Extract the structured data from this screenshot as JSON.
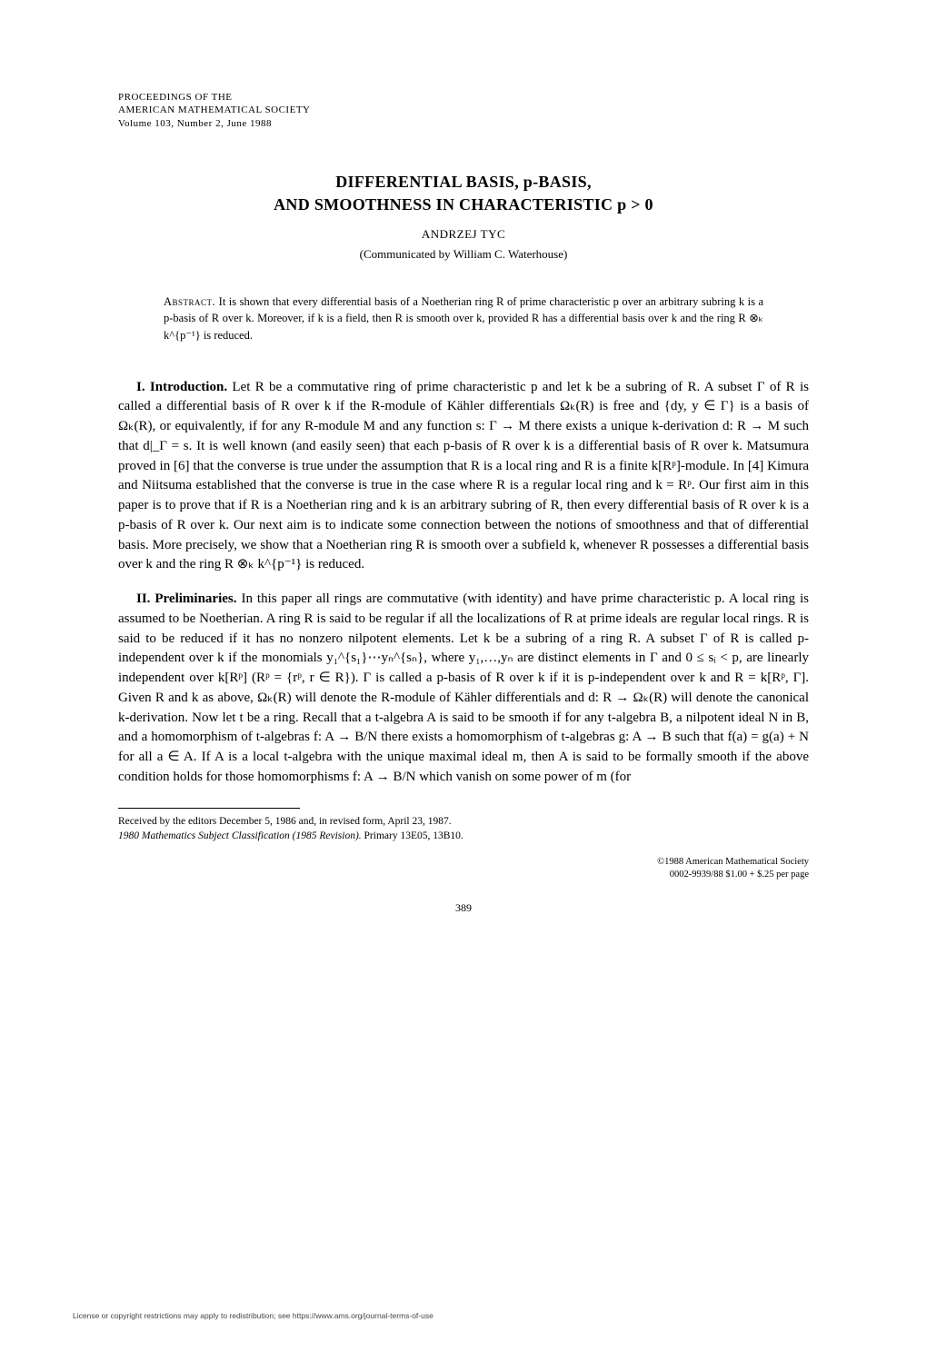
{
  "header": {
    "l1": "PROCEEDINGS OF THE",
    "l2": "AMERICAN MATHEMATICAL SOCIETY",
    "l3": "Volume 103, Number 2, June 1988"
  },
  "title": {
    "l1": "DIFFERENTIAL BASIS, p-BASIS,",
    "l2": "AND SMOOTHNESS IN CHARACTERISTIC p > 0"
  },
  "author": "ANDRZEJ TYC",
  "communicated": "(Communicated by William C. Waterhouse)",
  "abstract": {
    "label": "Abstract.",
    "text": " It is shown that every differential basis of a Noetherian ring R of prime characteristic p over an arbitrary subring k is a p-basis of R over k. Moreover, if k is a field, then R is smooth over k, provided R has a differential basis over k and the ring R ⊗ₖ k^{p⁻¹} is reduced."
  },
  "section1": {
    "title": "I. Introduction.",
    "text": " Let R be a commutative ring of prime characteristic p and let k be a subring of R. A subset Γ of R is called a differential basis of R over k if the R-module of Kähler differentials Ωₖ(R) is free and {dy, y ∈ Γ} is a basis of Ωₖ(R), or equivalently, if for any R-module M and any function s: Γ → M there exists a unique k-derivation d: R → M such that d|_Γ = s. It is well known (and easily seen) that each p-basis of R over k is a differential basis of R over k. Matsumura proved in [6] that the converse is true under the assumption that R is a local ring and R is a finite k[Rᵖ]-module. In [4] Kimura and Niitsuma established that the converse is true in the case where R is a regular local ring and k = Rᵖ. Our first aim in this paper is to prove that if R is a Noetherian ring and k is an arbitrary subring of R, then every differential basis of R over k is a p-basis of R over k. Our next aim is to indicate some connection between the notions of smoothness and that of differential basis. More precisely, we show that a Noetherian ring R is smooth over a subfield k, whenever R possesses a differential basis over k and the ring R ⊗ₖ k^{p⁻¹} is reduced."
  },
  "section2": {
    "title": "II. Preliminaries.",
    "text": " In this paper all rings are commutative (with identity) and have prime characteristic p. A local ring is assumed to be Noetherian. A ring R is said to be regular if all the localizations of R at prime ideals are regular local rings. R is said to be reduced if it has no nonzero nilpotent elements. Let k be a subring of a ring R. A subset Γ of R is called p-independent over k if the monomials y₁^{s₁}⋯yₙ^{sₙ}, where y₁,…,yₙ are distinct elements in Γ and 0 ≤ sᵢ < p, are linearly independent over k[Rᵖ] (Rᵖ = {rᵖ, r ∈ R}). Γ is called a p-basis of R over k if it is p-independent over k and R = k[Rᵖ, Γ]. Given R and k as above, Ωₖ(R) will denote the R-module of Kähler differentials and d: R → Ωₖ(R) will denote the canonical k-derivation. Now let t be a ring. Recall that a t-algebra A is said to be smooth if for any t-algebra B, a nilpotent ideal N in B, and a homomorphism of t-algebras f: A → B/N there exists a homomorphism of t-algebras g: A → B such that f(a) = g(a) + N for all a ∈ A. If A is a local t-algebra with the unique maximal ideal m, then A is said to be formally smooth if the above condition holds for those homomorphisms f: A → B/N which vanish on some power of m (for"
  },
  "footnotes": {
    "received": "Received by the editors December 5, 1986 and, in revised form, April 23, 1987.",
    "msc_label": "1980 Mathematics Subject Classification (1985 Revision).",
    "msc_text": " Primary 13E05, 13B10."
  },
  "copyright": {
    "l1": "©1988 American Mathematical Society",
    "l2": "0002-9939/88 $1.00 + $.25 per page"
  },
  "page_number": "389",
  "license": "License or copyright restrictions may apply to redistribution; see https://www.ams.org/journal-terms-of-use"
}
